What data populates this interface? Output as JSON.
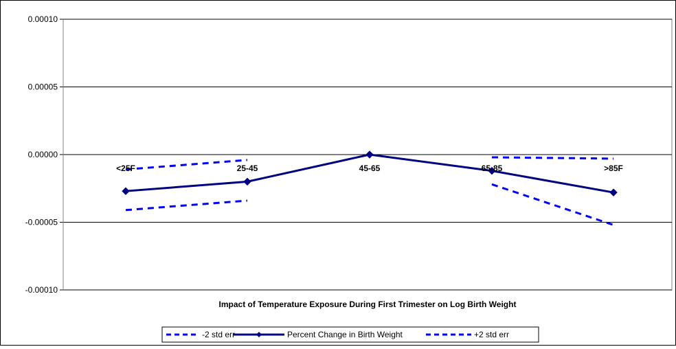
{
  "chart_data": {
    "type": "line",
    "title": "",
    "xlabel": "Impact of Temperature Exposure During First Trimester on Log Birth Weight",
    "ylabel": "",
    "categories": [
      "<25F",
      "25-45",
      "45-65",
      "65-85",
      ">85F"
    ],
    "ylim": [
      -0.0001,
      0.0001
    ],
    "yticks": [
      0.0001,
      5e-05,
      0,
      -5e-05,
      -0.0001
    ],
    "ytick_labels": [
      "0.00010",
      "0.00005",
      "0.00000",
      "-0.00005",
      "-0.00010"
    ],
    "grid": "horizontal",
    "legend_position": "bottom",
    "series": [
      {
        "name": "-2 std err",
        "style": "dashed",
        "color": "#0000ff",
        "values": [
          -4.1e-05,
          -3.4e-05,
          null,
          -2.2e-05,
          -5.2e-05
        ]
      },
      {
        "name": "Percent Change in Birth Weight",
        "style": "solid",
        "marker": "diamond",
        "color": "#000080",
        "values": [
          -2.7e-05,
          -2e-05,
          0.0,
          -1.2e-05,
          -2.8e-05
        ]
      },
      {
        "name": "+2 std err",
        "style": "dashed",
        "color": "#0000ff",
        "values": [
          -1.1e-05,
          -4e-06,
          null,
          -2e-06,
          -3e-06
        ]
      }
    ]
  }
}
